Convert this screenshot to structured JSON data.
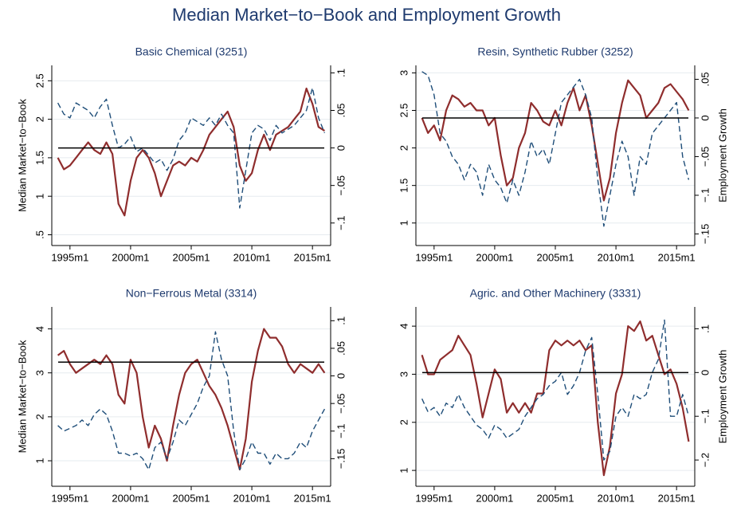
{
  "title": "Median Market−to−Book and Employment Growth",
  "chart_data": [
    {
      "type": "dual-line",
      "title": "Basic Chemical (3251)",
      "ylabel": "Median Market−to−Book",
      "x": [
        "1994m1",
        "1994m7",
        "1995m1",
        "1995m7",
        "1996m1",
        "1996m7",
        "1997m1",
        "1997m7",
        "1998m1",
        "1998m7",
        "1999m1",
        "1999m7",
        "2000m1",
        "2000m7",
        "2001m1",
        "2001m7",
        "2002m1",
        "2002m7",
        "2003m1",
        "2003m7",
        "2004m1",
        "2004m7",
        "2005m1",
        "2005m7",
        "2006m1",
        "2006m7",
        "2007m1",
        "2007m7",
        "2008m1",
        "2008m7",
        "2009m1",
        "2009m7",
        "2010m1",
        "2010m7",
        "2011m1",
        "2011m7",
        "2012m1",
        "2012m7",
        "2013m1",
        "2013m7",
        "2014m1",
        "2014m7",
        "2015m1",
        "2015m7",
        "2016m1"
      ],
      "xlim": [
        "1993m7",
        "2016m7"
      ],
      "xticks": [
        "1995m1",
        "2000m1",
        "2005m1",
        "2010m1",
        "2015m1"
      ],
      "ylim": [
        0.36,
        2.7
      ],
      "yticks": [
        {
          "value": 0.5,
          "label": ".5"
        },
        1,
        1.5,
        2,
        2.5
      ],
      "y2lim": [
        -0.13,
        0.11
      ],
      "y2ticks": [
        {
          "value": -0.1,
          "label": "−.1"
        },
        {
          "value": -0.05,
          "label": "−.05"
        },
        0,
        {
          "value": 0.05,
          "label": ".05"
        },
        {
          "value": 0.1,
          "label": ".1"
        }
      ],
      "hline": 0,
      "grid": true,
      "series": [
        {
          "color": "#8f2d2d",
          "style": "solid",
          "values": [
            1.5,
            1.35,
            1.4,
            1.5,
            1.6,
            1.7,
            1.6,
            1.55,
            1.7,
            1.55,
            0.9,
            0.75,
            1.2,
            1.5,
            1.6,
            1.5,
            1.3,
            1.0,
            1.2,
            1.4,
            1.45,
            1.4,
            1.5,
            1.45,
            1.6,
            1.8,
            1.9,
            2.0,
            2.1,
            1.9,
            1.4,
            1.2,
            1.3,
            1.6,
            1.8,
            1.6,
            1.8,
            1.85,
            1.9,
            2.0,
            2.1,
            2.4,
            2.2,
            1.9,
            1.85
          ]
        },
        {
          "color": "#1f4e79",
          "style": "dashed",
          "axis": "y2",
          "values": [
            0.06,
            0.045,
            0.04,
            0.06,
            0.055,
            0.05,
            0.04,
            0.055,
            0.065,
            0.03,
            0.0,
            0.005,
            0.015,
            -0.005,
            0.0,
            -0.01,
            -0.02,
            -0.015,
            -0.03,
            -0.015,
            0.01,
            0.02,
            0.04,
            0.035,
            0.03,
            0.04,
            0.03,
            0.045,
            0.03,
            0.02,
            -0.08,
            -0.03,
            0.02,
            0.03,
            0.025,
            0.01,
            0.03,
            0.02,
            0.025,
            0.03,
            0.04,
            0.05,
            0.08,
            0.04,
            0.02
          ]
        }
      ]
    },
    {
      "type": "dual-line",
      "title": "Resin, Synthetic Rubber (3252)",
      "y2label": "Employment Growth",
      "x": [
        "1994m1",
        "1994m7",
        "1995m1",
        "1995m7",
        "1996m1",
        "1996m7",
        "1997m1",
        "1997m7",
        "1998m1",
        "1998m7",
        "1999m1",
        "1999m7",
        "2000m1",
        "2000m7",
        "2001m1",
        "2001m7",
        "2002m1",
        "2002m7",
        "2003m1",
        "2003m7",
        "2004m1",
        "2004m7",
        "2005m1",
        "2005m7",
        "2006m1",
        "2006m7",
        "2007m1",
        "2007m7",
        "2008m1",
        "2008m7",
        "2009m1",
        "2009m7",
        "2010m1",
        "2010m7",
        "2011m1",
        "2011m7",
        "2012m1",
        "2012m7",
        "2013m1",
        "2013m7",
        "2014m1",
        "2014m7",
        "2015m1",
        "2015m7",
        "2016m1"
      ],
      "xlim": [
        "1993m7",
        "2016m7"
      ],
      "xticks": [
        "1995m1",
        "2000m1",
        "2005m1",
        "2010m1",
        "2015m1"
      ],
      "ylim": [
        0.7,
        3.1
      ],
      "yticks": [
        1,
        1.5,
        2,
        2.5,
        3
      ],
      "y2lim": [
        -0.165,
        0.068
      ],
      "y2ticks": [
        {
          "value": -0.15,
          "label": "−.15"
        },
        {
          "value": -0.1,
          "label": "−.1"
        },
        {
          "value": -0.05,
          "label": "−.05"
        },
        0,
        {
          "value": 0.05,
          "label": ".05"
        }
      ],
      "hline": 0,
      "grid": true,
      "series": [
        {
          "color": "#8f2d2d",
          "style": "solid",
          "values": [
            2.4,
            2.2,
            2.3,
            2.1,
            2.5,
            2.7,
            2.65,
            2.55,
            2.6,
            2.5,
            2.5,
            2.3,
            2.4,
            1.9,
            1.5,
            1.6,
            2.0,
            2.2,
            2.6,
            2.5,
            2.35,
            2.3,
            2.5,
            2.3,
            2.6,
            2.8,
            2.5,
            2.7,
            2.3,
            1.8,
            1.3,
            1.6,
            2.2,
            2.6,
            2.9,
            2.8,
            2.7,
            2.4,
            2.5,
            2.6,
            2.8,
            2.85,
            2.75,
            2.65,
            2.5
          ]
        },
        {
          "color": "#1f4e79",
          "style": "dashed",
          "axis": "y2",
          "values": [
            0.06,
            0.055,
            0.03,
            -0.02,
            -0.03,
            -0.05,
            -0.06,
            -0.08,
            -0.06,
            -0.07,
            -0.1,
            -0.06,
            -0.08,
            -0.09,
            -0.11,
            -0.08,
            -0.1,
            -0.07,
            -0.03,
            -0.05,
            -0.04,
            -0.06,
            -0.02,
            0.02,
            0.03,
            0.04,
            0.05,
            0.03,
            0.0,
            -0.08,
            -0.14,
            -0.1,
            -0.06,
            -0.03,
            -0.05,
            -0.1,
            -0.05,
            -0.06,
            -0.02,
            -0.01,
            0.0,
            0.01,
            0.02,
            -0.05,
            -0.08
          ]
        }
      ]
    },
    {
      "type": "dual-line",
      "title": "Non−Ferrous Metal (3314)",
      "ylabel": "Median Market−to−Book",
      "x": [
        "1994m1",
        "1994m7",
        "1995m1",
        "1995m7",
        "1996m1",
        "1996m7",
        "1997m1",
        "1997m7",
        "1998m1",
        "1998m7",
        "1999m1",
        "1999m7",
        "2000m1",
        "2000m7",
        "2001m1",
        "2001m7",
        "2002m1",
        "2002m7",
        "2003m1",
        "2003m7",
        "2004m1",
        "2004m7",
        "2005m1",
        "2005m7",
        "2006m1",
        "2006m7",
        "2007m1",
        "2007m7",
        "2008m1",
        "2008m7",
        "2009m1",
        "2009m7",
        "2010m1",
        "2010m7",
        "2011m1",
        "2011m7",
        "2012m1",
        "2012m7",
        "2013m1",
        "2013m7",
        "2014m1",
        "2014m7",
        "2015m1",
        "2015m7",
        "2016m1"
      ],
      "xlim": [
        "1993m7",
        "2016m7"
      ],
      "xticks": [
        "1995m1",
        "2000m1",
        "2005m1",
        "2010m1",
        "2015m1"
      ],
      "ylim": [
        0.42,
        4.5
      ],
      "yticks": [
        1,
        2,
        3,
        4
      ],
      "y2lim": [
        -0.2,
        0.125
      ],
      "y2ticks": [
        {
          "value": -0.15,
          "label": "−.15"
        },
        {
          "value": -0.1,
          "label": "−.1"
        },
        {
          "value": -0.05,
          "label": "−.05"
        },
        0,
        {
          "value": 0.05,
          "label": ".05"
        },
        {
          "value": 0.1,
          "label": ".1"
        }
      ],
      "hline": 0.025,
      "grid": true,
      "series": [
        {
          "color": "#8f2d2d",
          "style": "solid",
          "values": [
            3.4,
            3.5,
            3.2,
            3.0,
            3.1,
            3.2,
            3.3,
            3.2,
            3.4,
            3.2,
            2.5,
            2.3,
            3.3,
            3.0,
            2.0,
            1.3,
            1.8,
            1.5,
            1.0,
            1.8,
            2.5,
            3.0,
            3.2,
            3.3,
            3.0,
            2.7,
            2.5,
            2.2,
            1.8,
            1.3,
            0.8,
            1.5,
            2.8,
            3.5,
            4.0,
            3.8,
            3.8,
            3.6,
            3.2,
            3.0,
            3.2,
            3.1,
            3.0,
            3.2,
            3.0
          ]
        },
        {
          "color": "#1f4e79",
          "style": "dashed",
          "axis": "y2",
          "values": [
            -0.09,
            -0.1,
            -0.095,
            -0.09,
            -0.08,
            -0.09,
            -0.07,
            -0.06,
            -0.07,
            -0.1,
            -0.14,
            -0.14,
            -0.145,
            -0.14,
            -0.15,
            -0.17,
            -0.13,
            -0.12,
            -0.15,
            -0.12,
            -0.08,
            -0.09,
            -0.07,
            -0.05,
            -0.02,
            0.0,
            0.08,
            0.03,
            0.0,
            -0.1,
            -0.17,
            -0.15,
            -0.12,
            -0.14,
            -0.14,
            -0.16,
            -0.14,
            -0.15,
            -0.15,
            -0.14,
            -0.12,
            -0.13,
            -0.1,
            -0.08,
            -0.06
          ]
        }
      ]
    },
    {
      "type": "dual-line",
      "title": "Agric. and Other Machinery  (3331)",
      "y2label": "Employment Growth",
      "x": [
        "1994m1",
        "1994m7",
        "1995m1",
        "1995m7",
        "1996m1",
        "1996m7",
        "1997m1",
        "1997m7",
        "1998m1",
        "1998m7",
        "1999m1",
        "1999m7",
        "2000m1",
        "2000m7",
        "2001m1",
        "2001m7",
        "2002m1",
        "2002m7",
        "2003m1",
        "2003m7",
        "2004m1",
        "2004m7",
        "2005m1",
        "2005m7",
        "2006m1",
        "2006m7",
        "2007m1",
        "2007m7",
        "2008m1",
        "2008m7",
        "2009m1",
        "2009m7",
        "2010m1",
        "2010m7",
        "2011m1",
        "2011m7",
        "2012m1",
        "2012m7",
        "2013m1",
        "2013m7",
        "2014m1",
        "2014m7",
        "2015m1",
        "2015m7",
        "2016m1"
      ],
      "xlim": [
        "1993m7",
        "2016m7"
      ],
      "xticks": [
        "1995m1",
        "2000m1",
        "2005m1",
        "2010m1",
        "2015m1"
      ],
      "ylim": [
        0.67,
        4.4
      ],
      "yticks": [
        1,
        2,
        3,
        4
      ],
      "y2lim": [
        -0.26,
        0.15
      ],
      "y2ticks": [
        {
          "value": -0.2,
          "label": "−.2"
        },
        {
          "value": -0.1,
          "label": "−.1"
        },
        0,
        {
          "value": 0.1,
          "label": ".1"
        }
      ],
      "hline": 0,
      "grid": true,
      "series": [
        {
          "color": "#8f2d2d",
          "style": "solid",
          "values": [
            3.4,
            3.0,
            3.0,
            3.3,
            3.4,
            3.5,
            3.8,
            3.6,
            3.4,
            2.8,
            2.1,
            2.6,
            3.1,
            2.9,
            2.2,
            2.4,
            2.2,
            2.4,
            2.2,
            2.6,
            2.6,
            3.5,
            3.7,
            3.6,
            3.7,
            3.6,
            3.7,
            3.5,
            3.6,
            2.0,
            0.9,
            1.5,
            2.6,
            3.0,
            4.0,
            3.9,
            4.1,
            3.7,
            3.8,
            3.4,
            3.0,
            3.1,
            2.8,
            2.3,
            1.6
          ]
        },
        {
          "color": "#1f4e79",
          "style": "dashed",
          "axis": "y2",
          "values": [
            -0.06,
            -0.09,
            -0.08,
            -0.1,
            -0.07,
            -0.08,
            -0.05,
            -0.08,
            -0.1,
            -0.12,
            -0.13,
            -0.15,
            -0.12,
            -0.13,
            -0.15,
            -0.14,
            -0.13,
            -0.1,
            -0.08,
            -0.06,
            -0.05,
            -0.03,
            -0.02,
            0.0,
            -0.05,
            -0.03,
            0.0,
            0.05,
            0.08,
            -0.05,
            -0.2,
            -0.18,
            -0.1,
            -0.08,
            -0.1,
            -0.05,
            -0.06,
            -0.05,
            0.0,
            0.03,
            0.12,
            -0.1,
            -0.1,
            -0.05,
            -0.1
          ]
        }
      ]
    }
  ]
}
